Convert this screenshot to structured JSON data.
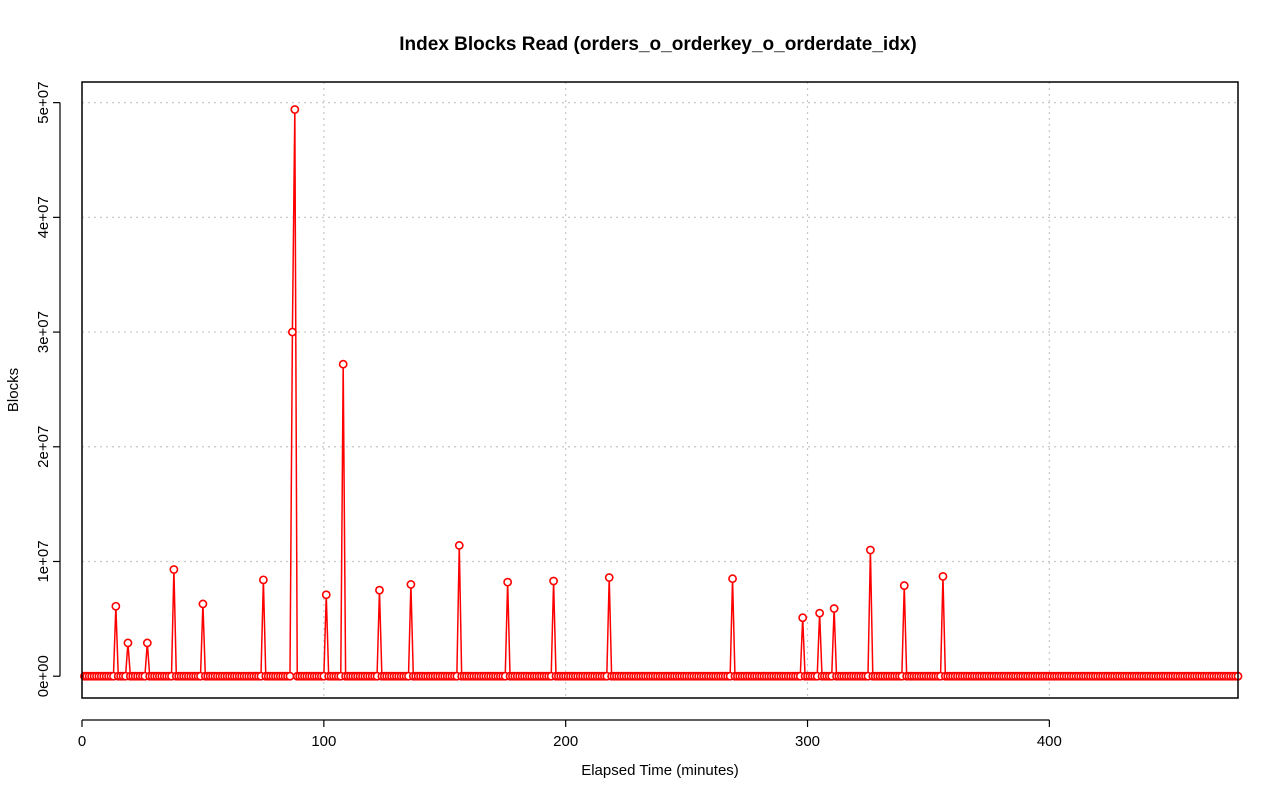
{
  "chart_data": {
    "type": "line",
    "title": "Index Blocks Read (orders_o_orderkey_o_orderdate_idx)",
    "xlabel": "Elapsed Time (minutes)",
    "ylabel": "Blocks",
    "xlim": [
      0,
      478
    ],
    "ylim": [
      -1900000,
      51800000
    ],
    "x_ticks": [
      0,
      100,
      200,
      300,
      400
    ],
    "x_tick_labels": [
      "0",
      "100",
      "200",
      "300",
      "400"
    ],
    "y_ticks": [
      0,
      10000000,
      20000000,
      30000000,
      40000000,
      50000000
    ],
    "y_tick_labels": [
      "0e+00",
      "1e+07",
      "2e+07",
      "3e+07",
      "4e+07",
      "5e+07"
    ],
    "grid": true,
    "series_color": "#ff0000",
    "x_range": [
      1,
      478
    ],
    "baseline_value": 0,
    "points": [
      {
        "x": 14,
        "y": 6100000
      },
      {
        "x": 19,
        "y": 2900000
      },
      {
        "x": 27,
        "y": 2900000
      },
      {
        "x": 38,
        "y": 9300000
      },
      {
        "x": 50,
        "y": 6300000
      },
      {
        "x": 75,
        "y": 8400000
      },
      {
        "x": 87,
        "y": 30000000
      },
      {
        "x": 88,
        "y": 49400000
      },
      {
        "x": 101,
        "y": 7100000
      },
      {
        "x": 108,
        "y": 27200000
      },
      {
        "x": 123,
        "y": 7500000
      },
      {
        "x": 136,
        "y": 8000000
      },
      {
        "x": 156,
        "y": 11400000
      },
      {
        "x": 176,
        "y": 8200000
      },
      {
        "x": 195,
        "y": 8300000
      },
      {
        "x": 218,
        "y": 8600000
      },
      {
        "x": 269,
        "y": 8500000
      },
      {
        "x": 298,
        "y": 5100000
      },
      {
        "x": 305,
        "y": 5500000
      },
      {
        "x": 311,
        "y": 5900000
      },
      {
        "x": 326,
        "y": 11000000
      },
      {
        "x": 340,
        "y": 7900000
      },
      {
        "x": 356,
        "y": 8700000
      }
    ]
  }
}
